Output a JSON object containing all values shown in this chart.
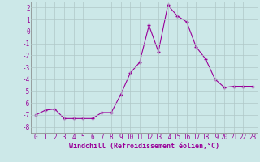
{
  "x": [
    0,
    1,
    2,
    3,
    4,
    5,
    6,
    7,
    8,
    9,
    10,
    11,
    12,
    13,
    14,
    15,
    16,
    17,
    18,
    19,
    20,
    21,
    22,
    23
  ],
  "y": [
    -7.0,
    -6.6,
    -6.5,
    -7.3,
    -7.3,
    -7.3,
    -7.3,
    -6.8,
    -6.8,
    -5.3,
    -3.5,
    -2.6,
    0.5,
    -1.7,
    2.2,
    1.3,
    0.8,
    -1.3,
    -2.3,
    -4.0,
    -4.7,
    -4.6,
    -4.6,
    -4.6
  ],
  "line_color": "#990099",
  "marker": "+",
  "marker_size": 3.5,
  "bg_color": "#cce8e8",
  "grid_color": "#b0c8c8",
  "xlabel": "Windchill (Refroidissement éolien,°C)",
  "ylim": [
    -8.5,
    2.5
  ],
  "xlim": [
    -0.5,
    23.5
  ],
  "yticks": [
    -8,
    -7,
    -6,
    -5,
    -4,
    -3,
    -2,
    -1,
    0,
    1,
    2
  ],
  "xticks": [
    0,
    1,
    2,
    3,
    4,
    5,
    6,
    7,
    8,
    9,
    10,
    11,
    12,
    13,
    14,
    15,
    16,
    17,
    18,
    19,
    20,
    21,
    22,
    23
  ],
  "tick_color": "#990099",
  "label_color": "#990099",
  "label_fontsize": 6.0,
  "tick_fontsize": 5.5,
  "line_width": 0.8
}
